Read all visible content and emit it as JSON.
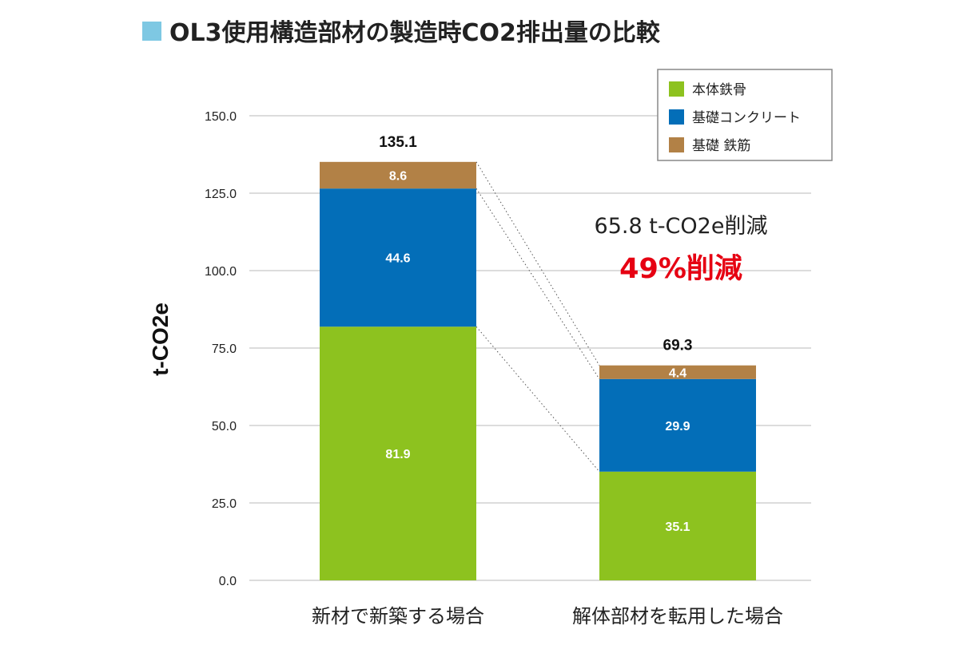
{
  "chart_data": {
    "type": "bar",
    "stacked": true,
    "title": "OL3使用構造部材の製造時CO2排出量の比較",
    "ylabel": "t-CO2e",
    "xlabel": "",
    "ylim": [
      0,
      150
    ],
    "yticks": [
      "0.0",
      "25.0",
      "50.0",
      "75.0",
      "100.0",
      "125.0",
      "150.0"
    ],
    "grid": true,
    "legend_position": "top-right",
    "categories": [
      "新材で新築する場合",
      "解体部材を転用した場合"
    ],
    "series": [
      {
        "name": "本体鉄骨",
        "color": "#8dc21f",
        "values": [
          81.9,
          35.1
        ],
        "labels": [
          "81.9",
          "35.1"
        ]
      },
      {
        "name": "基礎コンクリート",
        "color": "#036eb8",
        "values": [
          44.6,
          29.9
        ],
        "labels": [
          "44.6",
          "29.9"
        ]
      },
      {
        "name": "基礎 鉄筋",
        "color": "#b28146",
        "values": [
          8.6,
          4.4
        ],
        "labels": [
          "8.6",
          "4.4"
        ]
      }
    ],
    "totals": [
      "135.1",
      "69.3"
    ],
    "annotations": [
      "65.8 t-CO2e削減",
      "49%削減"
    ]
  },
  "colors": {
    "title_square": "#7ec8e3",
    "reduction_highlight": "#e60012"
  }
}
